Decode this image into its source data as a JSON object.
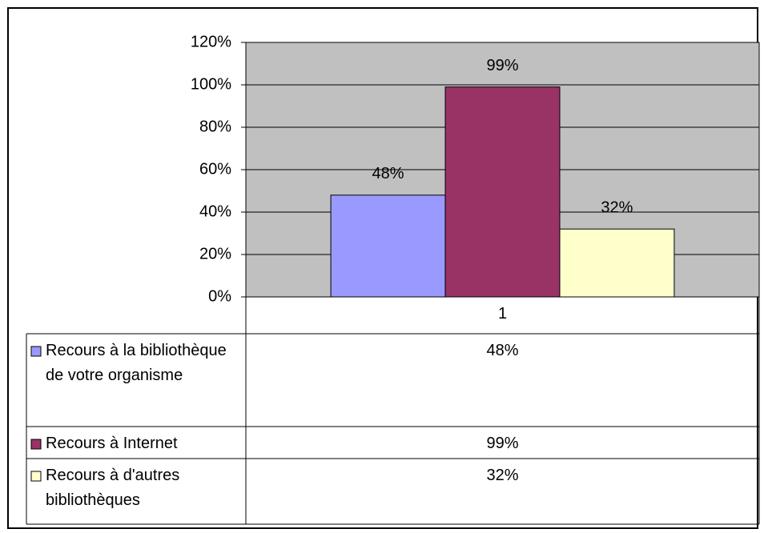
{
  "chart_data": {
    "type": "bar",
    "categories": [
      "1"
    ],
    "series": [
      {
        "name": "Recours à la bibliothèque de votre organisme",
        "color": "#9999ff",
        "values": [
          48
        ],
        "value_labels": [
          "48%"
        ]
      },
      {
        "name": "Recours à Internet",
        "color": "#993366",
        "values": [
          99
        ],
        "value_labels": [
          "99%"
        ]
      },
      {
        "name": "Recours à d'autres bibliothèques",
        "color": "#ffffcc",
        "values": [
          32
        ],
        "value_labels": [
          "32%"
        ]
      }
    ],
    "ylim": [
      0,
      120
    ],
    "yticks": [
      {
        "value": 0,
        "label": "0%"
      },
      {
        "value": 20,
        "label": "20%"
      },
      {
        "value": 40,
        "label": "40%"
      },
      {
        "value": 60,
        "label": "60%"
      },
      {
        "value": 80,
        "label": "80%"
      },
      {
        "value": 100,
        "label": "100%"
      },
      {
        "value": 120,
        "label": "120%"
      }
    ],
    "grid": true,
    "plot_background": "#c0c0c0"
  }
}
